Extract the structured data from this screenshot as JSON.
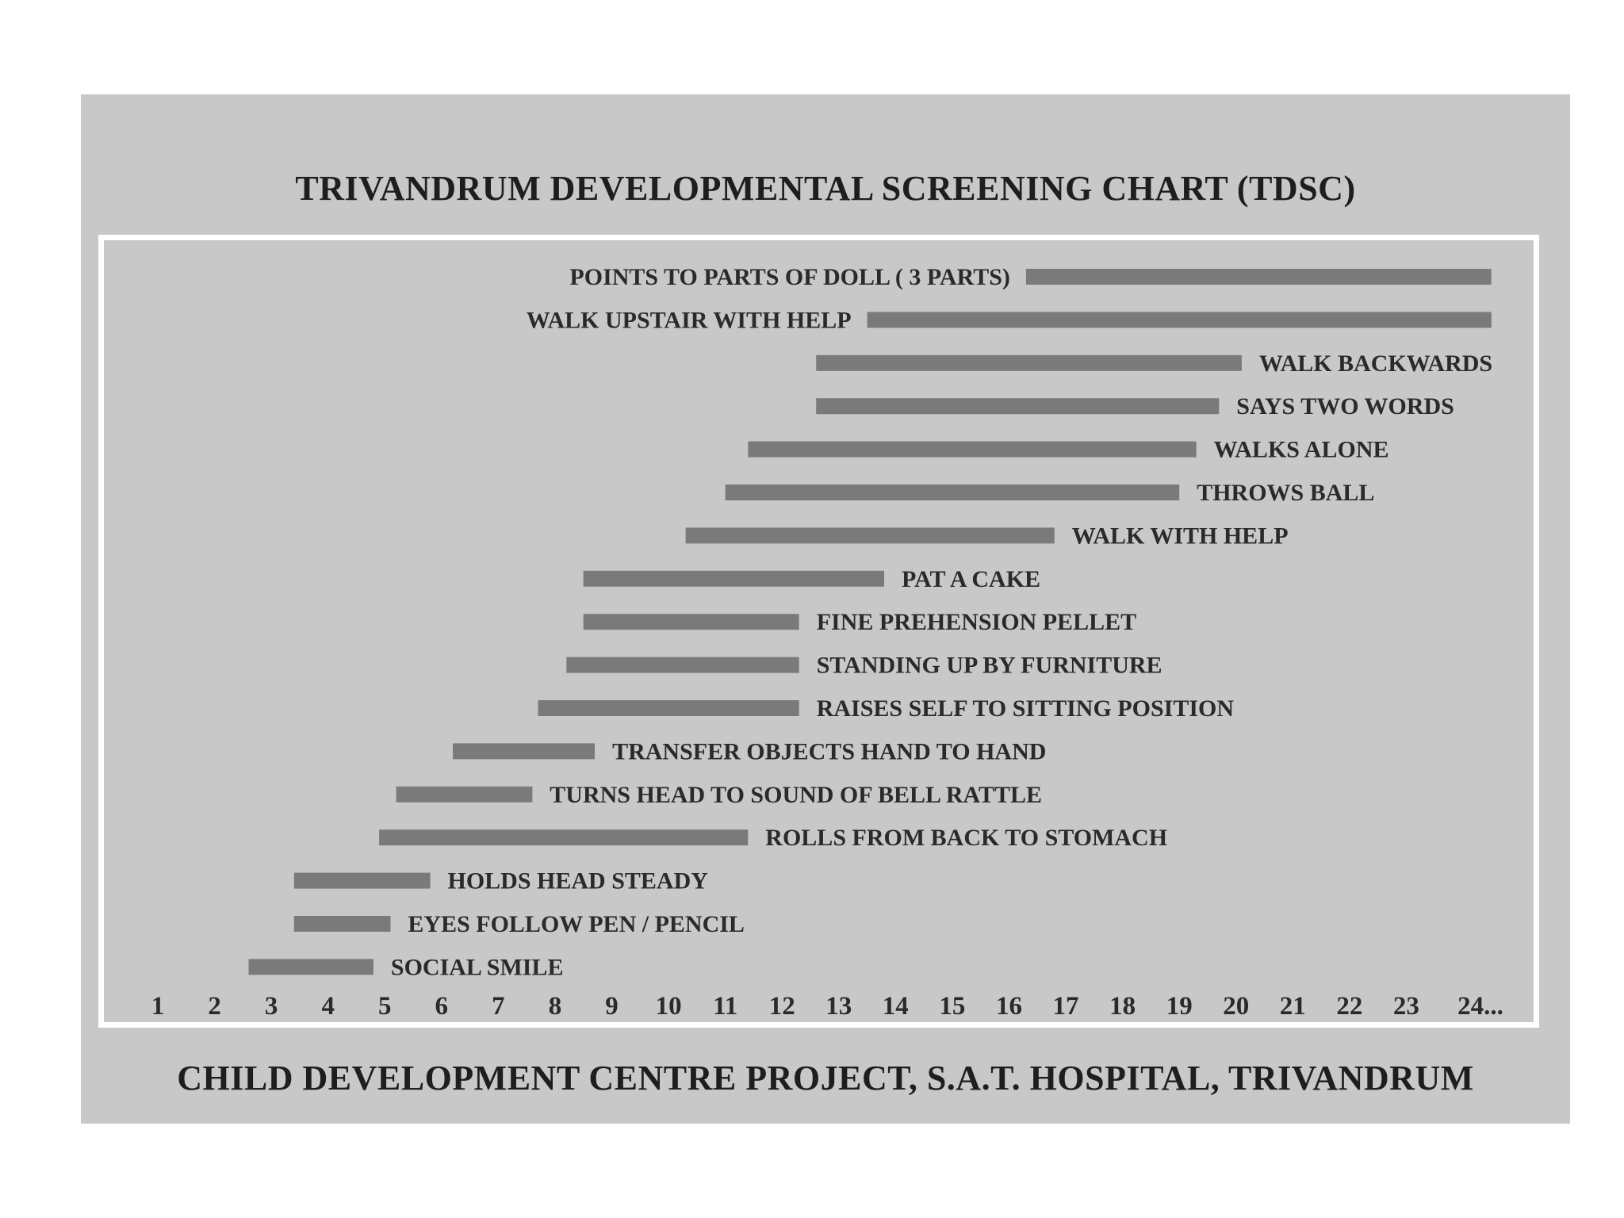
{
  "chart_data": {
    "type": "bar",
    "orientation": "horizontal-range",
    "title": "TRIVANDRUM DEVELOPMENTAL SCREENING CHART (TDSC)",
    "footer": "CHILD DEVELOPMENT CENTRE PROJECT, S.A.T. HOSPITAL, TRIVANDRUM",
    "xticks": [
      "1",
      "2",
      "3",
      "4",
      "5",
      "6",
      "7",
      "8",
      "9",
      "10",
      "11",
      "12",
      "13",
      "14",
      "15",
      "16",
      "17",
      "18",
      "19",
      "20",
      "21",
      "22",
      "23",
      "24..."
    ],
    "xlim": [
      0.5,
      24.5
    ],
    "items": [
      {
        "label": "POINTS TO PARTS OF DOLL ( 3 PARTS)",
        "start": 16.3,
        "end": 24.5,
        "label_side": "left"
      },
      {
        "label": "WALK UPSTAIR WITH HELP",
        "start": 13.5,
        "end": 24.5,
        "label_side": "left"
      },
      {
        "label": "WALK BACKWARDS",
        "start": 12.6,
        "end": 20.1,
        "label_side": "right"
      },
      {
        "label": "SAYS TWO WORDS",
        "start": 12.6,
        "end": 19.7,
        "label_side": "right"
      },
      {
        "label": "WALKS ALONE",
        "start": 11.4,
        "end": 19.3,
        "label_side": "right"
      },
      {
        "label": "THROWS BALL",
        "start": 11.0,
        "end": 19.0,
        "label_side": "right"
      },
      {
        "label": "WALK WITH HELP",
        "start": 10.3,
        "end": 16.8,
        "label_side": "right"
      },
      {
        "label": "PAT A CAKE",
        "start": 8.5,
        "end": 13.8,
        "label_side": "right"
      },
      {
        "label": "FINE PREHENSION PELLET",
        "start": 8.5,
        "end": 12.3,
        "label_side": "right"
      },
      {
        "label": "STANDING UP BY FURNITURE",
        "start": 8.2,
        "end": 12.3,
        "label_side": "right"
      },
      {
        "label": "RAISES SELF TO SITTING POSITION",
        "start": 7.7,
        "end": 12.3,
        "label_side": "right"
      },
      {
        "label": "TRANSFER OBJECTS HAND TO HAND",
        "start": 6.2,
        "end": 8.7,
        "label_side": "right"
      },
      {
        "label": "TURNS HEAD TO SOUND OF BELL RATTLE",
        "start": 5.2,
        "end": 7.6,
        "label_side": "right"
      },
      {
        "label": "ROLLS FROM BACK TO STOMACH",
        "start": 4.9,
        "end": 11.4,
        "label_side": "right"
      },
      {
        "label": "HOLDS HEAD STEADY",
        "start": 3.4,
        "end": 5.8,
        "label_side": "right"
      },
      {
        "label": "EYES FOLLOW PEN / PENCIL",
        "start": 3.4,
        "end": 5.1,
        "label_side": "right"
      },
      {
        "label": "SOCIAL SMILE",
        "start": 2.6,
        "end": 4.8,
        "label_side": "right"
      }
    ],
    "colors": {
      "bar": "#7a7a7a",
      "background": "#c8c8c8",
      "frame": "#ffffff",
      "text": "#2a2a2a"
    },
    "grid": false,
    "legend": "none"
  }
}
